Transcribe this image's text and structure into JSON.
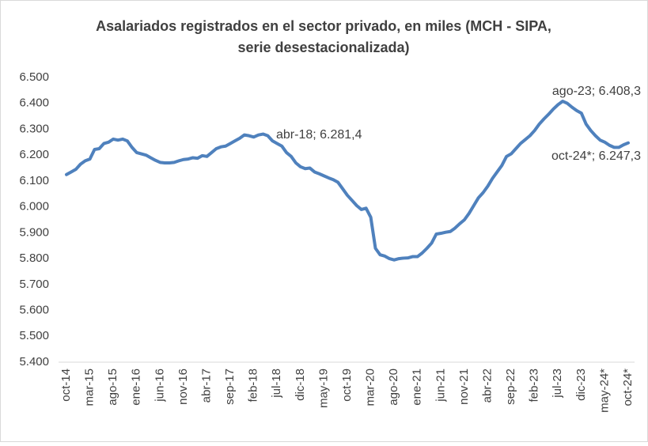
{
  "chart_data": {
    "type": "line",
    "title": [
      "Asalariados registrados en el sector privado, en miles (MCH - SIPA,",
      "serie desestacionalizada)"
    ],
    "categories": [
      "oct-14",
      null,
      null,
      null,
      null,
      "mar-15",
      null,
      null,
      null,
      null,
      "ago-15",
      null,
      null,
      null,
      null,
      "ene-16",
      null,
      null,
      null,
      null,
      "jun-16",
      null,
      null,
      null,
      null,
      "nov-16",
      null,
      null,
      null,
      null,
      "abr-17",
      null,
      null,
      null,
      null,
      "sep-17",
      null,
      null,
      null,
      null,
      "feb-18",
      null,
      null,
      null,
      null,
      "jul-18",
      null,
      null,
      null,
      null,
      "dic-18",
      null,
      null,
      null,
      null,
      "may-19",
      null,
      null,
      null,
      null,
      "oct-19",
      null,
      null,
      null,
      null,
      "mar-20",
      null,
      null,
      null,
      null,
      "ago-20",
      null,
      null,
      null,
      null,
      "ene-21",
      null,
      null,
      null,
      null,
      "jun-21",
      null,
      null,
      null,
      null,
      "nov-21",
      null,
      null,
      null,
      null,
      "abr-22",
      null,
      null,
      null,
      null,
      "sep-22",
      null,
      null,
      null,
      null,
      "feb-23",
      null,
      null,
      null,
      null,
      "jul-23",
      null,
      null,
      null,
      null,
      "dic-23",
      null,
      null,
      null,
      null,
      "may-24*",
      null,
      null,
      null,
      null,
      "oct-24*"
    ],
    "series": [
      {
        "name": "Asalariados registrados",
        "color": "#4f81bd",
        "values": [
          6125,
          6135,
          6145,
          6165,
          6178,
          6185,
          6222,
          6225,
          6245,
          6250,
          6262,
          6258,
          6262,
          6255,
          6230,
          6210,
          6205,
          6200,
          6190,
          6180,
          6172,
          6170,
          6170,
          6172,
          6178,
          6183,
          6185,
          6190,
          6188,
          6198,
          6195,
          6210,
          6225,
          6232,
          6235,
          6245,
          6255,
          6265,
          6278,
          6275,
          6270,
          6278,
          6281.4,
          6275,
          6255,
          6245,
          6235,
          6210,
          6195,
          6170,
          6155,
          6148,
          6150,
          6135,
          6128,
          6120,
          6112,
          6105,
          6095,
          6070,
          6045,
          6025,
          6005,
          5990,
          5995,
          5960,
          5840,
          5815,
          5810,
          5800,
          5795,
          5800,
          5802,
          5803,
          5808,
          5808,
          5822,
          5840,
          5860,
          5895,
          5898,
          5902,
          5905,
          5918,
          5935,
          5950,
          5975,
          6005,
          6035,
          6055,
          6080,
          6110,
          6135,
          6160,
          6195,
          6205,
          6225,
          6245,
          6260,
          6275,
          6295,
          6320,
          6340,
          6358,
          6378,
          6395,
          6408.3,
          6400,
          6385,
          6372,
          6362,
          6320,
          6295,
          6275,
          6258,
          6250,
          6238,
          6230,
          6230,
          6240,
          6247.3
        ]
      }
    ],
    "ylim": [
      5400,
      6500
    ],
    "yticks": [
      {
        "value": 5400,
        "label": "5.400"
      },
      {
        "value": 5500,
        "label": "5.500"
      },
      {
        "value": 5600,
        "label": "5.600"
      },
      {
        "value": 5700,
        "label": "5.700"
      },
      {
        "value": 5800,
        "label": "5.800"
      },
      {
        "value": 5900,
        "label": "5.900"
      },
      {
        "value": 6000,
        "label": "6.000"
      },
      {
        "value": 6100,
        "label": "6.100"
      },
      {
        "value": 6200,
        "label": "6.200"
      },
      {
        "value": 6300,
        "label": "6.300"
      },
      {
        "value": 6400,
        "label": "6.400"
      },
      {
        "value": 6500,
        "label": "6.500"
      }
    ],
    "annotations": [
      "abr-18; 6.281,4",
      "ago-23; 6.408,3",
      "oct-24*; 6.247,3"
    ],
    "grid": false
  }
}
